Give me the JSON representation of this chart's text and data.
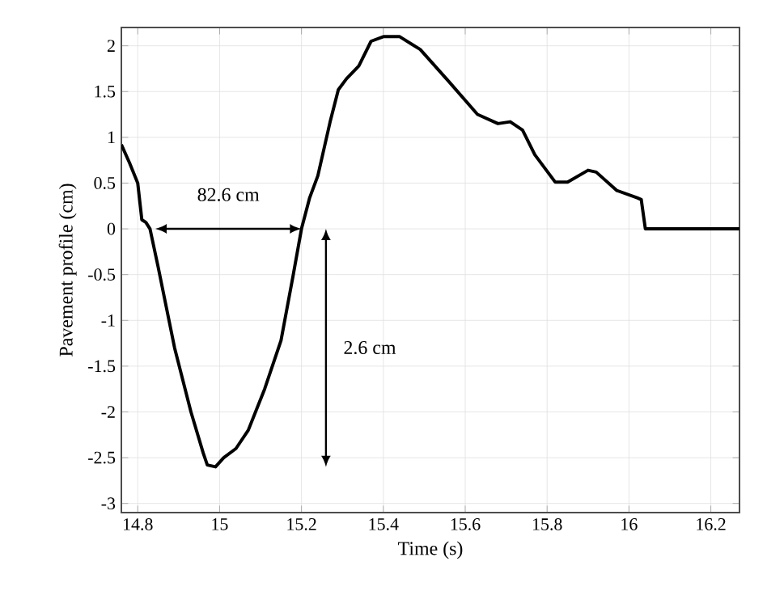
{
  "chart_data": {
    "type": "line",
    "xlabel": "Time (s)",
    "ylabel": "Pavement profile (cm)",
    "xlim": [
      14.76,
      16.27
    ],
    "ylim": [
      -3.1,
      2.2
    ],
    "xticks": [
      14.8,
      15,
      15.2,
      15.4,
      15.6,
      15.8,
      16,
      16.2
    ],
    "yticks": [
      -3,
      -2.5,
      -2,
      -1.5,
      -1,
      -0.5,
      0,
      0.5,
      1,
      1.5,
      2
    ],
    "grid": true,
    "line_style": "solid",
    "series": [
      {
        "color": "#000000",
        "x": [
          14.76,
          14.78,
          14.8,
          14.81,
          14.82,
          14.83,
          14.85,
          14.89,
          14.93,
          14.96,
          14.97,
          14.99,
          15.01,
          15.04,
          15.07,
          15.11,
          15.15,
          15.18,
          15.2,
          15.22,
          15.24,
          15.27,
          15.29,
          15.31,
          15.34,
          15.37,
          15.4,
          15.44,
          15.49,
          15.56,
          15.63,
          15.68,
          15.71,
          15.74,
          15.77,
          15.82,
          15.85,
          15.9,
          15.92,
          15.97,
          16.02,
          16.03,
          16.04,
          16.27
        ],
        "values": [
          0.92,
          0.72,
          0.5,
          0.1,
          0.07,
          0,
          -0.42,
          -1.3,
          -2.0,
          -2.45,
          -2.58,
          -2.6,
          -2.5,
          -2.4,
          -2.2,
          -1.75,
          -1.22,
          -0.5,
          0,
          0.34,
          0.58,
          1.17,
          1.52,
          1.64,
          1.78,
          2.05,
          2.1,
          2.1,
          1.96,
          1.61,
          1.25,
          1.15,
          1.17,
          1.08,
          0.81,
          0.51,
          0.51,
          0.64,
          0.62,
          0.42,
          0.34,
          0.32,
          0,
          0
        ]
      }
    ],
    "annotations": [
      "82.6 cm",
      "2.6 cm"
    ]
  }
}
